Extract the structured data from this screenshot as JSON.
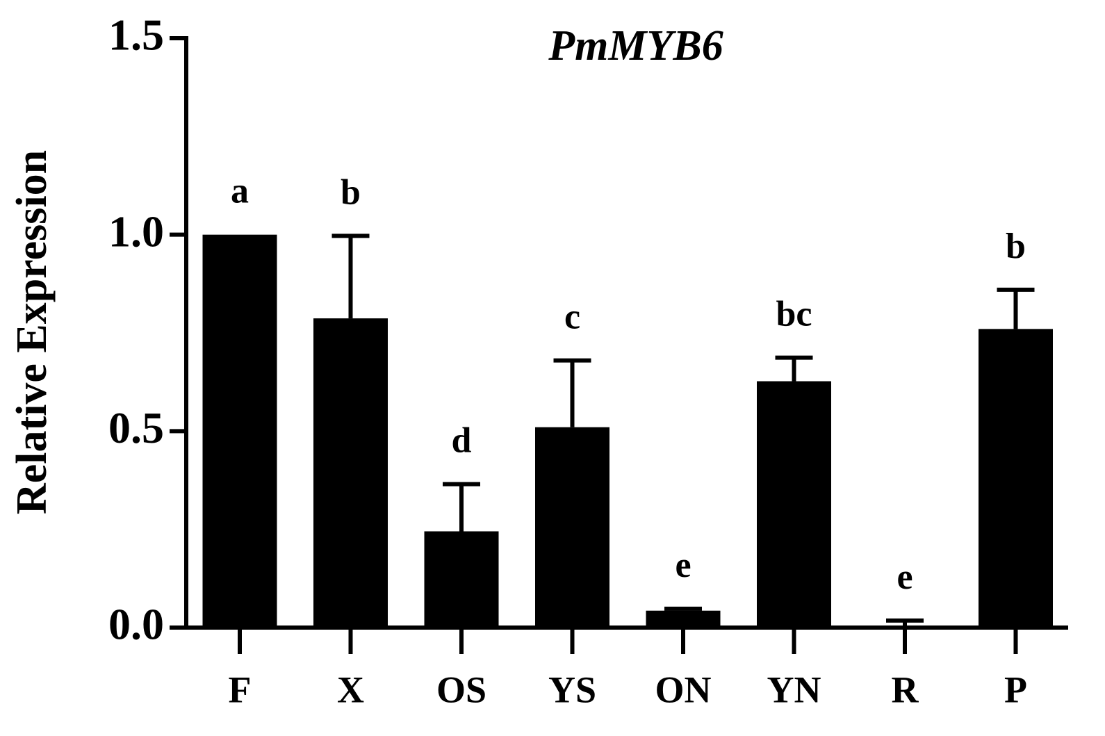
{
  "chart_data": {
    "type": "bar",
    "title": "PmMYB6",
    "y_label": "Relative Expression",
    "categories": [
      "F",
      "X",
      "OS",
      "YS",
      "ON",
      "YN",
      "R",
      "P"
    ],
    "values": [
      1.0,
      0.787,
      0.245,
      0.51,
      0.043,
      0.627,
      0.005,
      0.76
    ],
    "errors": [
      0,
      0.21,
      0.12,
      0.17,
      0.005,
      0.06,
      0.013,
      0.1
    ],
    "significance_letters": [
      "a",
      "b",
      "d",
      "c",
      "e",
      "bc",
      "e",
      "b"
    ],
    "color": "#000000",
    "ylim": [
      0,
      1.5
    ],
    "yticks": [
      {
        "value": 0,
        "label": "0.0"
      },
      0.5,
      {
        "value": 1,
        "label": "1.0"
      },
      1.5
    ]
  }
}
